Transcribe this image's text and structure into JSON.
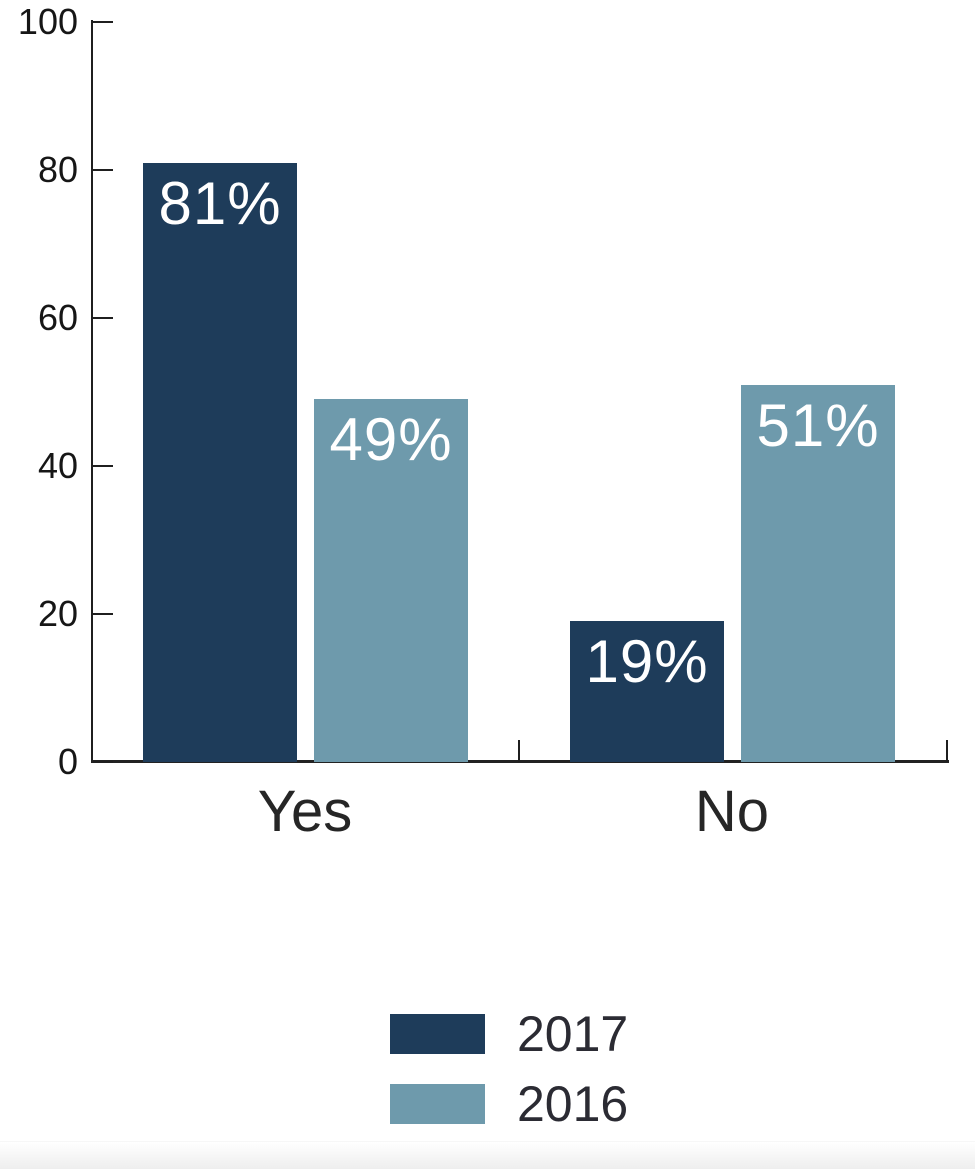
{
  "chart_data": {
    "type": "bar",
    "categories": [
      "Yes",
      "No"
    ],
    "series": [
      {
        "name": "2017",
        "color": "#1e3c5a",
        "values": [
          81,
          19
        ],
        "labels": [
          "81%",
          "19%"
        ]
      },
      {
        "name": "2016",
        "color": "#6e9aac",
        "values": [
          49,
          51
        ],
        "labels": [
          "49%",
          "51%"
        ]
      }
    ],
    "title": "",
    "xlabel": "",
    "ylabel": "",
    "ylim": [
      0,
      100
    ],
    "yticks": [
      0,
      20,
      40,
      60,
      80,
      100
    ],
    "grid": false,
    "tick_direction": "in",
    "legend_position": "bottom-center",
    "value_label_color": "#ffffff",
    "axis_color": "#1f1f1f",
    "text_color": "#262626"
  }
}
